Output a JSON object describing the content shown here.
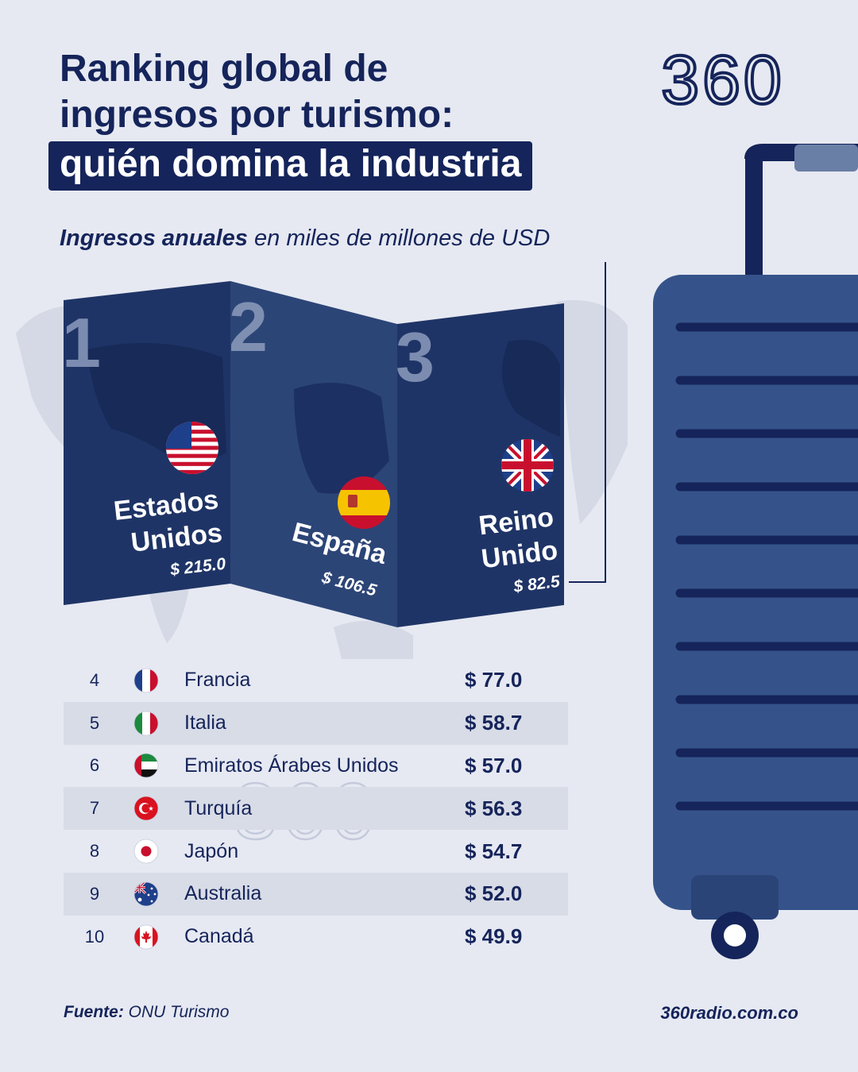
{
  "title": {
    "line1": "Ranking global de",
    "line2": "ingresos por turismo:",
    "line3": "quién domina la industria"
  },
  "logo": "360",
  "subtitle": {
    "bold": "Ingresos anuales",
    "rest": "en miles de millones de USD"
  },
  "chart_data": {
    "type": "table",
    "columns": [
      "rank",
      "country",
      "value"
    ],
    "rows": [
      {
        "rank": "1",
        "country": "Estados Unidos",
        "value": "$ 215.0",
        "v": 215.0
      },
      {
        "rank": "2",
        "country": "España",
        "value": "$ 106.5",
        "v": 106.5
      },
      {
        "rank": "3",
        "country": "Reino Unido",
        "value": "$ 82.5",
        "v": 82.5
      },
      {
        "rank": "4",
        "country": "Francia",
        "value": "$ 77.0",
        "v": 77.0,
        "flag": "france-flag-icon"
      },
      {
        "rank": "5",
        "country": "Italia",
        "value": "$ 58.7",
        "v": 58.7,
        "flag": "italy-flag-icon"
      },
      {
        "rank": "6",
        "country": "Emiratos Árabes Unidos",
        "value": "$ 57.0",
        "v": 57.0,
        "flag": "uae-flag-icon"
      },
      {
        "rank": "7",
        "country": "Turquía",
        "value": "$ 56.3",
        "v": 56.3,
        "flag": "turkey-flag-icon"
      },
      {
        "rank": "8",
        "country": "Japón",
        "value": "$ 54.7",
        "v": 54.7,
        "flag": "japan-flag-icon"
      },
      {
        "rank": "9",
        "country": "Australia",
        "value": "$ 52.0",
        "v": 52.0,
        "flag": "australia-flag-icon"
      },
      {
        "rank": "10",
        "country": "Canadá",
        "value": "$ 49.9",
        "v": 49.9,
        "flag": "canada-flag-icon"
      }
    ]
  },
  "podium": {
    "p1": {
      "rank": "1",
      "name1": "Estados",
      "name2": "Unidos",
      "value": "$ 215.0",
      "flag": "usa-flag-icon"
    },
    "p2": {
      "rank": "2",
      "name1": "España",
      "value": "$ 106.5",
      "flag": "spain-flag-icon"
    },
    "p3": {
      "rank": "3",
      "name1": "Reino",
      "name2": "Unido",
      "value": "$ 82.5",
      "flag": "uk-flag-icon"
    }
  },
  "watermark": "360",
  "footer": {
    "source_label": "Fuente:",
    "source": "ONU Turismo",
    "site": "360radio.com.co"
  },
  "colors": {
    "navy": "#15245a",
    "panel": "#1f3466",
    "panel_mid": "#2c4577",
    "background": "#e6e9f2",
    "suitcase": "#35538a",
    "stripe_row": "#d8dce7"
  }
}
